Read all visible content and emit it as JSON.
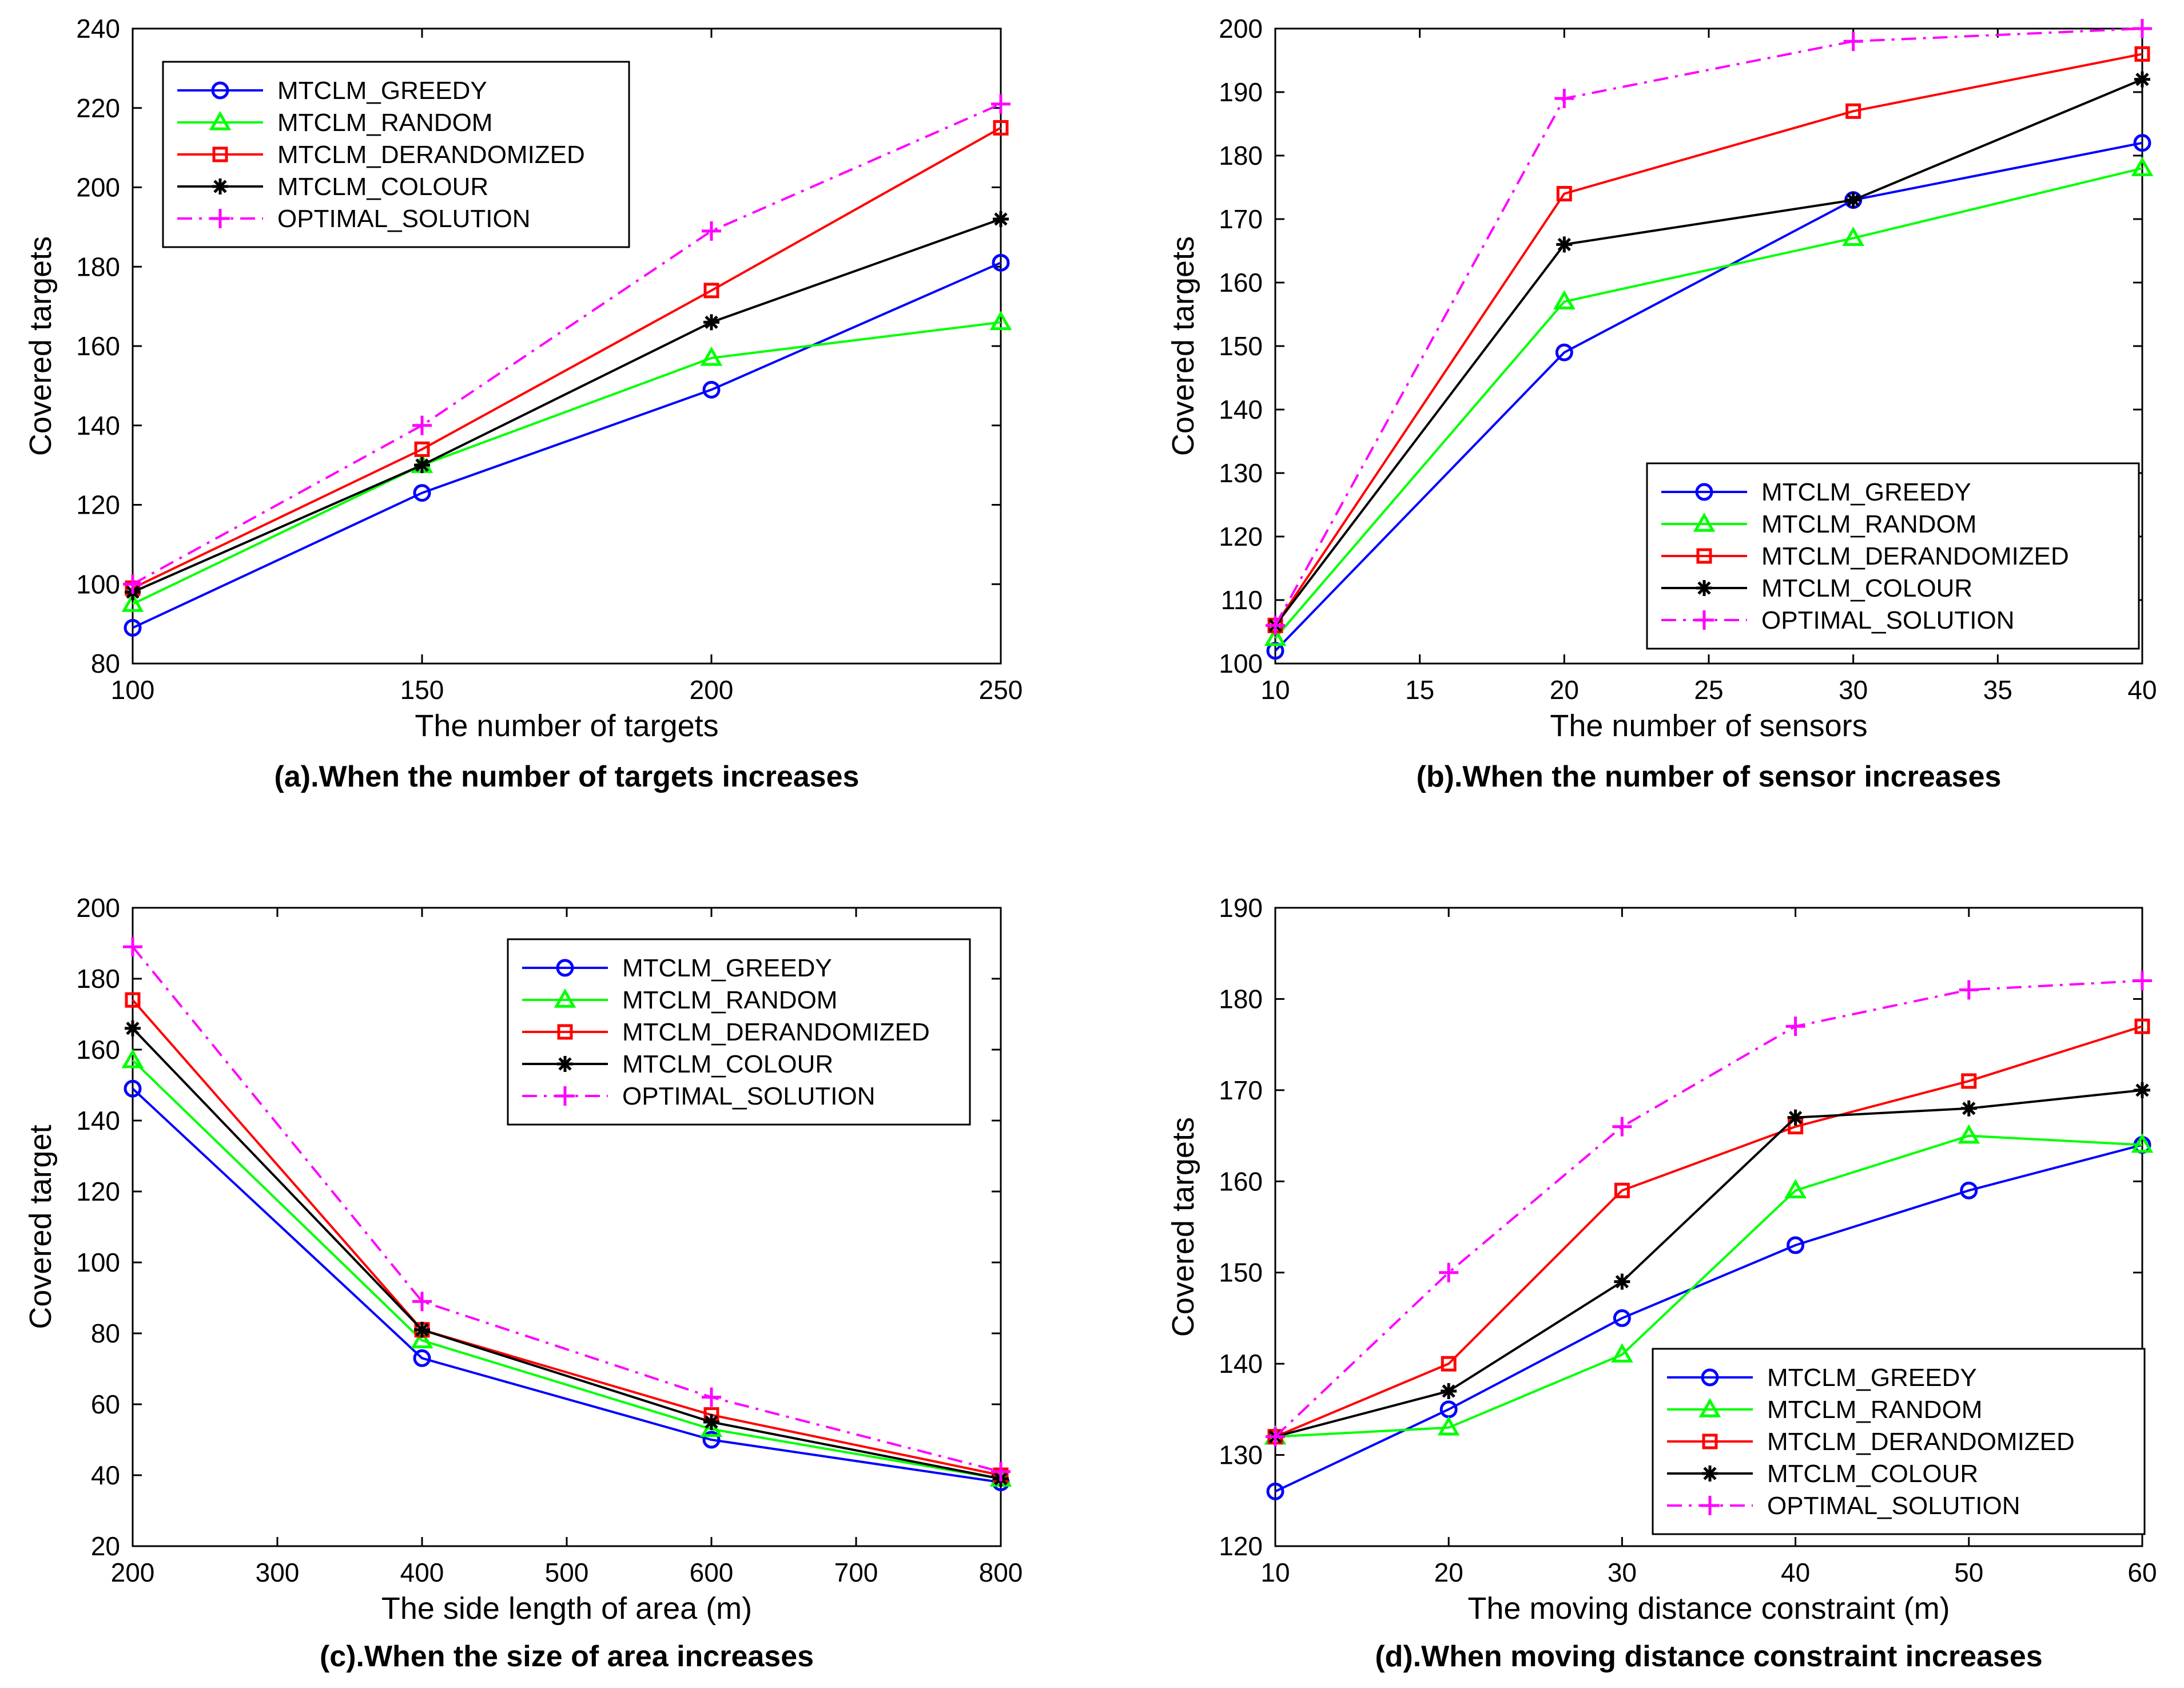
{
  "series_styles": [
    {
      "name": "MTCLM_GREEDY",
      "color": "#0000ff",
      "marker": "circle",
      "dash": "solid"
    },
    {
      "name": "MTCLM_RANDOM",
      "color": "#00ff00",
      "marker": "triangle",
      "dash": "solid"
    },
    {
      "name": "MTCLM_DERANDOMIZED",
      "color": "#ff0000",
      "marker": "square",
      "dash": "solid"
    },
    {
      "name": "MTCLM_COLOUR",
      "color": "#000000",
      "marker": "asterisk",
      "dash": "solid"
    },
    {
      "name": "OPTIMAL_SOLUTION",
      "color": "#ff00ff",
      "marker": "plus",
      "dash": "dashdot"
    }
  ],
  "chart_data": [
    {
      "type": "line",
      "caption": "(a).When the number of targets increases",
      "xlabel": "The number of targets",
      "ylabel": "Covered targets",
      "x": [
        100,
        150,
        200,
        250
      ],
      "xlim": [
        100,
        250
      ],
      "ylim": [
        80,
        240
      ],
      "xticks": [
        100,
        150,
        200,
        250
      ],
      "yticks": [
        80,
        100,
        120,
        140,
        160,
        180,
        200,
        220,
        240
      ],
      "legend_position": "top-left",
      "series": [
        {
          "name": "MTCLM_GREEDY",
          "values": [
            89,
            123,
            149,
            181
          ]
        },
        {
          "name": "MTCLM_RANDOM",
          "values": [
            95,
            130,
            157,
            166
          ]
        },
        {
          "name": "MTCLM_DERANDOMIZED",
          "values": [
            99,
            134,
            174,
            215
          ]
        },
        {
          "name": "MTCLM_COLOUR",
          "values": [
            98,
            130,
            166,
            192
          ]
        },
        {
          "name": "OPTIMAL_SOLUTION",
          "values": [
            100,
            140,
            189,
            221
          ]
        }
      ]
    },
    {
      "type": "line",
      "caption": "(b).When the number of sensor increases",
      "xlabel": "The number of sensors",
      "ylabel": "Covered targets",
      "x": [
        10,
        20,
        30,
        40
      ],
      "xlim": [
        10,
        40
      ],
      "ylim": [
        100,
        200
      ],
      "xticks": [
        10,
        15,
        20,
        25,
        30,
        35,
        40
      ],
      "yticks": [
        100,
        110,
        120,
        130,
        140,
        150,
        160,
        170,
        180,
        190,
        200
      ],
      "legend_position": "bottom-right",
      "series": [
        {
          "name": "MTCLM_GREEDY",
          "values": [
            102,
            149,
            173,
            182
          ]
        },
        {
          "name": "MTCLM_RANDOM",
          "values": [
            104,
            157,
            167,
            178
          ]
        },
        {
          "name": "MTCLM_DERANDOMIZED",
          "values": [
            106,
            174,
            187,
            196
          ]
        },
        {
          "name": "MTCLM_COLOUR",
          "values": [
            106,
            166,
            173,
            192
          ]
        },
        {
          "name": "OPTIMAL_SOLUTION",
          "values": [
            106,
            189,
            198,
            200
          ]
        }
      ]
    },
    {
      "type": "line",
      "caption": "(c).When the size of area increases",
      "xlabel": "The side length of area (m)",
      "ylabel": "Covered target",
      "x": [
        200,
        400,
        600,
        800
      ],
      "xlim": [
        200,
        800
      ],
      "ylim": [
        20,
        200
      ],
      "xticks": [
        200,
        300,
        400,
        500,
        600,
        700,
        800
      ],
      "yticks": [
        20,
        40,
        60,
        80,
        100,
        120,
        140,
        160,
        180,
        200
      ],
      "legend_position": "top-right",
      "series": [
        {
          "name": "MTCLM_GREEDY",
          "values": [
            149,
            73,
            50,
            38
          ]
        },
        {
          "name": "MTCLM_RANDOM",
          "values": [
            157,
            78,
            53,
            39
          ]
        },
        {
          "name": "MTCLM_DERANDOMIZED",
          "values": [
            174,
            81,
            57,
            40
          ]
        },
        {
          "name": "MTCLM_COLOUR",
          "values": [
            166,
            81,
            55,
            39
          ]
        },
        {
          "name": "OPTIMAL_SOLUTION",
          "values": [
            189,
            89,
            62,
            41
          ]
        }
      ]
    },
    {
      "type": "line",
      "caption": "(d).When moving distance constraint increases",
      "xlabel": "The moving distance constraint (m)",
      "ylabel": "Covered targets",
      "x": [
        10,
        20,
        30,
        40,
        50,
        60
      ],
      "xlim": [
        10,
        60
      ],
      "ylim": [
        120,
        190
      ],
      "xticks": [
        10,
        20,
        30,
        40,
        50,
        60
      ],
      "yticks": [
        120,
        130,
        140,
        150,
        160,
        170,
        180,
        190
      ],
      "legend_position": "bottom-right",
      "series": [
        {
          "name": "MTCLM_GREEDY",
          "values": [
            126,
            135,
            145,
            153,
            159,
            164
          ]
        },
        {
          "name": "MTCLM_RANDOM",
          "values": [
            132,
            133,
            141,
            159,
            165,
            164
          ]
        },
        {
          "name": "MTCLM_DERANDOMIZED",
          "values": [
            132,
            140,
            159,
            166,
            171,
            177
          ]
        },
        {
          "name": "MTCLM_COLOUR",
          "values": [
            132,
            137,
            149,
            167,
            168,
            170
          ]
        },
        {
          "name": "OPTIMAL_SOLUTION",
          "values": [
            132,
            150,
            166,
            177,
            181,
            182
          ]
        }
      ]
    }
  ]
}
